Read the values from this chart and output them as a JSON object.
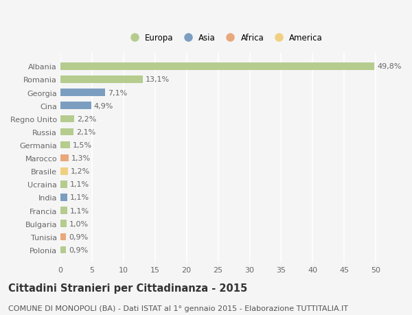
{
  "countries": [
    "Albania",
    "Romania",
    "Georgia",
    "Cina",
    "Regno Unito",
    "Russia",
    "Germania",
    "Marocco",
    "Brasile",
    "Ucraina",
    "India",
    "Francia",
    "Bulgaria",
    "Tunisia",
    "Polonia"
  ],
  "values": [
    49.8,
    13.1,
    7.1,
    4.9,
    2.2,
    2.1,
    1.5,
    1.3,
    1.2,
    1.1,
    1.1,
    1.1,
    1.0,
    0.9,
    0.9
  ],
  "labels": [
    "49,8%",
    "13,1%",
    "7,1%",
    "4,9%",
    "2,2%",
    "2,1%",
    "1,5%",
    "1,3%",
    "1,2%",
    "1,1%",
    "1,1%",
    "1,1%",
    "1,0%",
    "0,9%",
    "0,9%"
  ],
  "continents": [
    "Europa",
    "Europa",
    "Asia",
    "Asia",
    "Europa",
    "Europa",
    "Europa",
    "Africa",
    "America",
    "Europa",
    "Asia",
    "Europa",
    "Europa",
    "Africa",
    "Europa"
  ],
  "colors": {
    "Europa": "#b5cc8e",
    "Asia": "#7b9ec0",
    "Africa": "#e8a87c",
    "America": "#f0d080"
  },
  "xlim": [
    0,
    52
  ],
  "xticks": [
    0,
    5,
    10,
    15,
    20,
    25,
    30,
    35,
    40,
    45,
    50
  ],
  "title": "Cittadini Stranieri per Cittadinanza - 2015",
  "subtitle": "COMUNE DI MONOPOLI (BA) - Dati ISTAT al 1° gennaio 2015 - Elaborazione TUTTITALIA.IT",
  "background_color": "#f5f5f5",
  "bar_height": 0.55,
  "grid_color": "#ffffff",
  "label_fontsize": 8,
  "ytick_fontsize": 8,
  "xtick_fontsize": 8,
  "title_fontsize": 10.5,
  "subtitle_fontsize": 8,
  "legend_fontsize": 8.5,
  "legend_order": [
    "Europa",
    "Asia",
    "Africa",
    "America"
  ]
}
